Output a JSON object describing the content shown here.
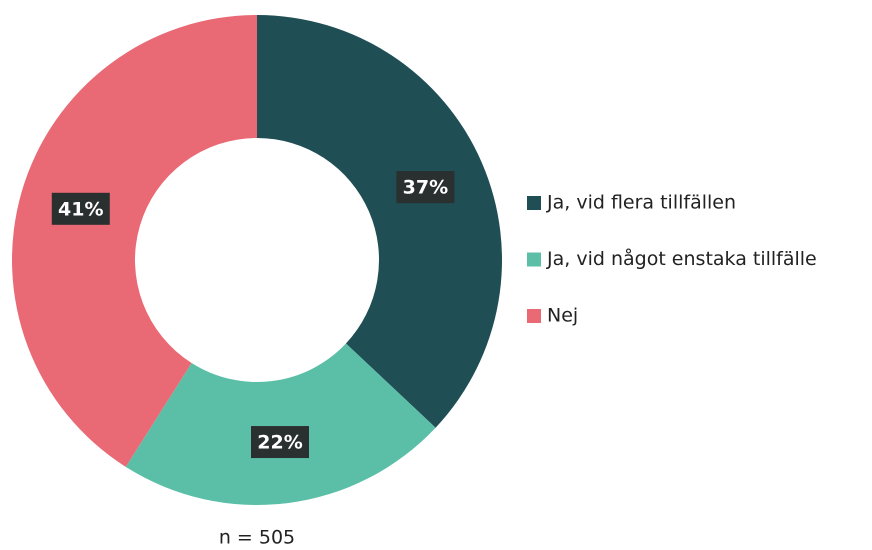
{
  "chart_data": {
    "type": "donut",
    "categories": [
      "Ja, vid flera tillfällen",
      "Ja, vid något enstaka tillfälle",
      "Nej"
    ],
    "values": [
      37,
      22,
      41
    ],
    "value_labels": [
      "37%",
      "22%",
      "41%"
    ],
    "colors": [
      "#1f4e55",
      "#5bbfa8",
      "#e96a75"
    ],
    "annotation": "n = 505",
    "legend": "right"
  }
}
